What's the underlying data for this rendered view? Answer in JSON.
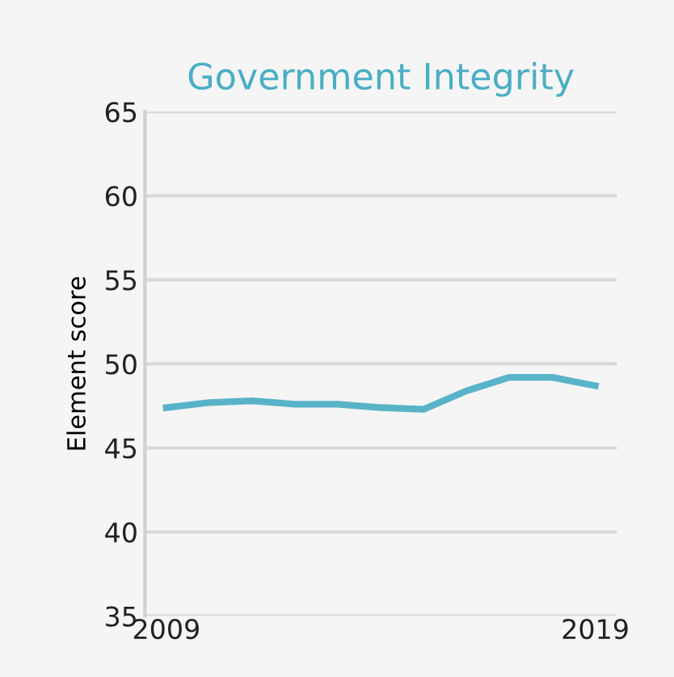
{
  "chart_data": {
    "type": "line",
    "title": "Government Integrity",
    "ylabel": "Element score",
    "x": [
      2009,
      2010,
      2011,
      2012,
      2013,
      2014,
      2015,
      2016,
      2017,
      2018,
      2019
    ],
    "series": [
      {
        "color": "#58b3c8",
        "values": [
          47.4,
          47.7,
          47.8,
          47.6,
          47.6,
          47.4,
          47.3,
          48.4,
          49.2,
          49.2,
          48.7
        ]
      }
    ],
    "xlim": [
      2008.5,
      2019.5
    ],
    "xticks": [
      2009,
      2019
    ],
    "ylim": [
      35,
      65
    ],
    "yticks": [
      35,
      40,
      45,
      50,
      55,
      60,
      65
    ],
    "grid": "y",
    "legend": false,
    "marker": "none",
    "line_style": "solid"
  }
}
